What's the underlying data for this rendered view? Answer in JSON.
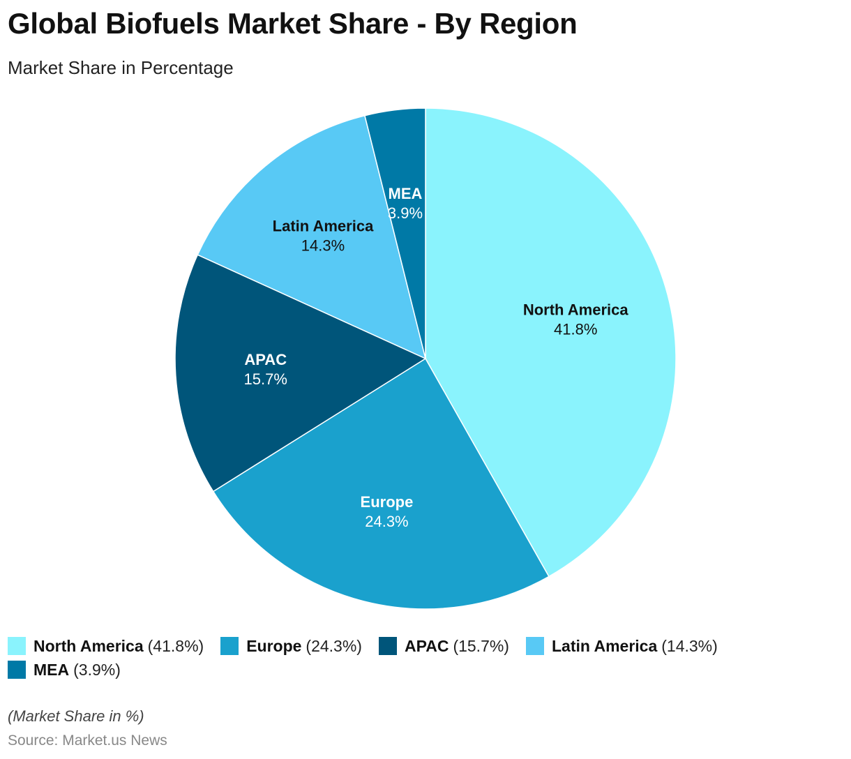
{
  "title": "Global Biofuels Market Share - By Region",
  "subtitle": "Market Share in Percentage",
  "note": "(Market Share in %)",
  "source": "Source: Market.us News",
  "chart_data": {
    "type": "pie",
    "title": "Global Biofuels Market Share - By Region",
    "subtitle": "Market Share in Percentage",
    "unit": "%",
    "legend_position": "bottom",
    "slices": [
      {
        "name": "North America",
        "value": 41.8,
        "label": "41.8%",
        "legend_value": "(41.8%)",
        "color": "#8af3fd",
        "label_color": "#111111"
      },
      {
        "name": "Europe",
        "value": 24.3,
        "label": "24.3%",
        "legend_value": "(24.3%)",
        "color": "#1aa1cd",
        "label_color": "#ffffff"
      },
      {
        "name": "APAC",
        "value": 15.7,
        "label": "15.7%",
        "legend_value": "(15.7%)",
        "color": "#00557a",
        "label_color": "#ffffff"
      },
      {
        "name": "Latin America",
        "value": 14.3,
        "label": "14.3%",
        "legend_value": "(14.3%)",
        "color": "#58c9f5",
        "label_color": "#111111"
      },
      {
        "name": "MEA",
        "value": 3.9,
        "label": "3.9%",
        "legend_value": "(3.9%)",
        "color": "#0079a6",
        "label_color": "#ffffff"
      }
    ]
  }
}
